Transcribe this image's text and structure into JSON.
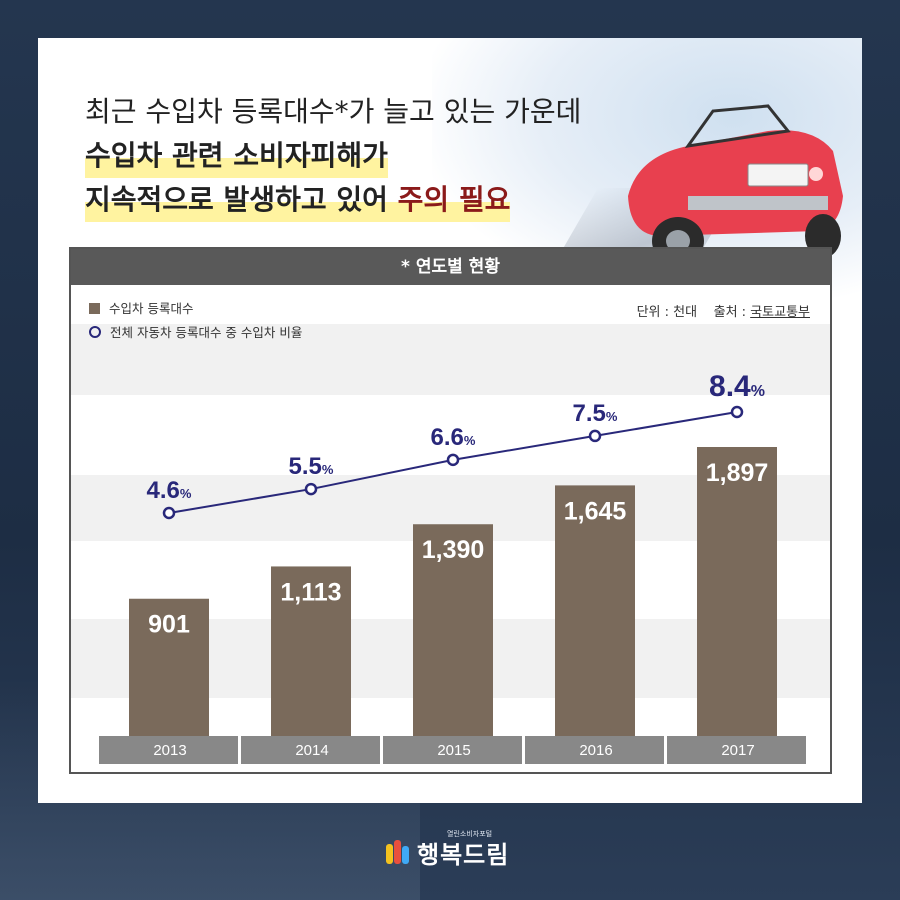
{
  "headline": {
    "line1": "최근 수입차 등록대수*가 늘고 있는 가운데",
    "line2": "수입차 관련 소비자피해가",
    "line3_a": "지속적으로 발생하고 있어 ",
    "line3_b": "주의 필요"
  },
  "chart_header": "* 연도별 현황",
  "legend": {
    "bar_label": "수입차 등록대수",
    "line_label": "전체 자동차 등록대수 중 수입차 비율"
  },
  "unit_text": "단위 : 천대",
  "source_prefix": "출처 : ",
  "source_name": "국토교통부",
  "logo": {
    "name": "행복드림",
    "sub": "열린소비자포털"
  },
  "colors": {
    "bar": "#7a6a5b",
    "line": "#29287a",
    "year_band": "#888888",
    "header": "#595959",
    "highlight": "#fff3a0",
    "accent_red": "#8b1a1a"
  },
  "chart_data": {
    "type": "bar",
    "categories": [
      "2013",
      "2014",
      "2015",
      "2016",
      "2017"
    ],
    "series": [
      {
        "name": "수입차 등록대수",
        "type": "bar",
        "values": [
          901,
          1113,
          1390,
          1645,
          1897
        ],
        "labels": [
          "901",
          "1,113",
          "1,390",
          "1,645",
          "1,897"
        ]
      },
      {
        "name": "전체 자동차 등록대수 중 수입차 비율",
        "type": "line",
        "values": [
          4.6,
          5.5,
          6.6,
          7.5,
          8.4
        ],
        "labels": [
          "4.6",
          "5.5",
          "6.6",
          "7.5",
          "8.4"
        ],
        "unit": "%"
      }
    ],
    "title": "* 연도별 현황",
    "xlabel": "",
    "ylabel": "",
    "legend": "top-left"
  }
}
